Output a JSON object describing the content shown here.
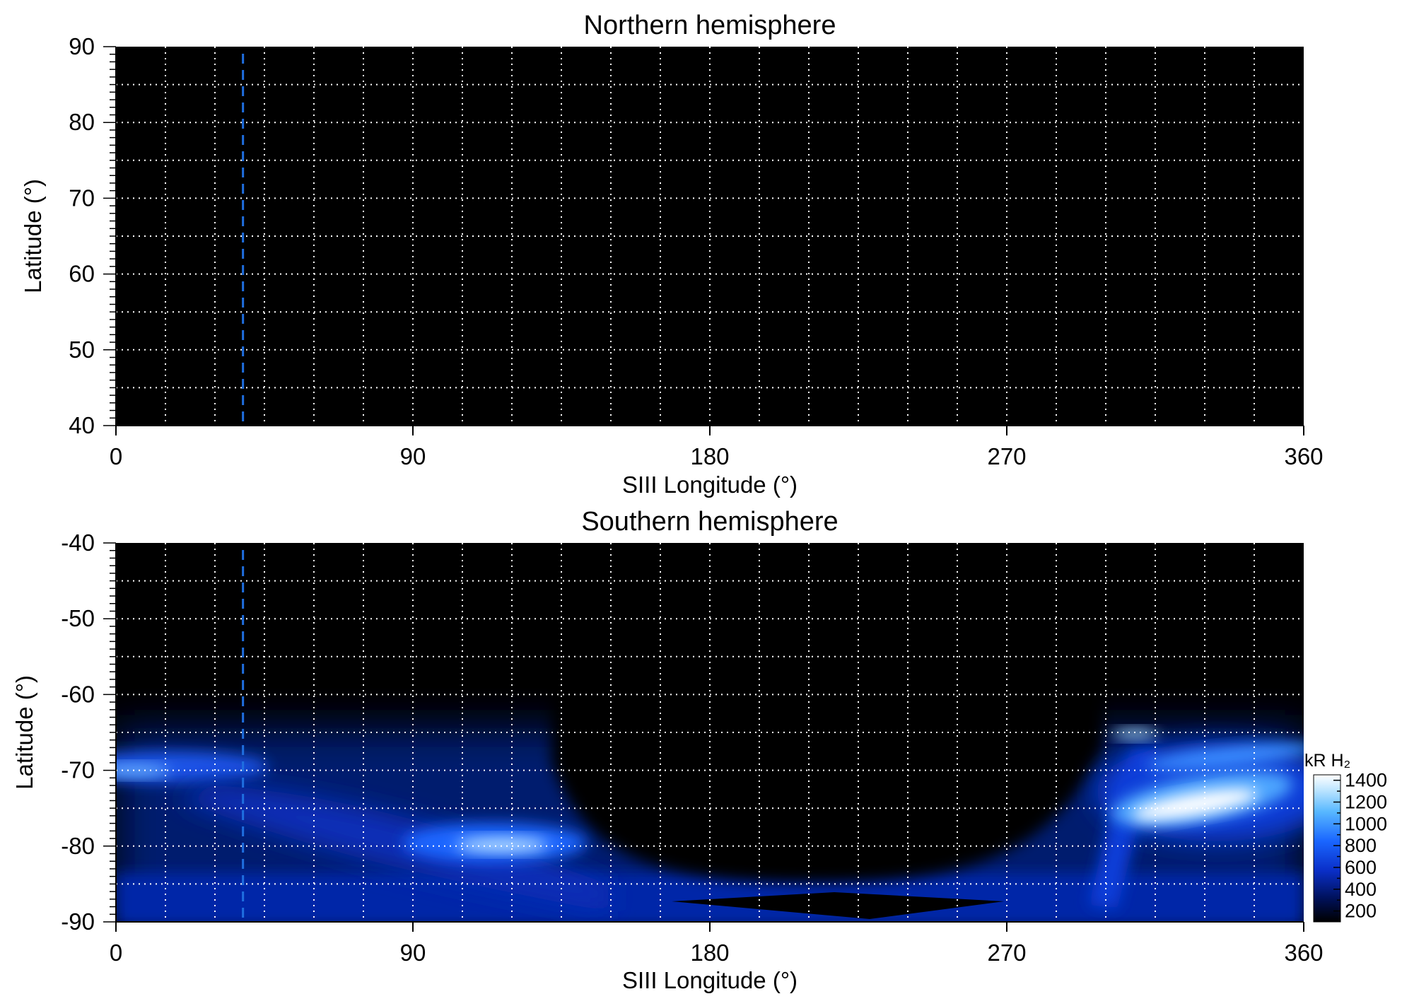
{
  "chart_data": [
    {
      "type": "heatmap",
      "title": "Northern hemisphere",
      "xlabel": "SIII Longitude (°)",
      "ylabel": "Latitude (°)",
      "xlim": [
        0,
        360
      ],
      "ylim": [
        40,
        90
      ],
      "xticks": [
        "0",
        "90",
        "180",
        "270",
        "360"
      ],
      "yticks": [
        "90",
        "80",
        "70",
        "60",
        "50",
        "40"
      ],
      "grid": true,
      "grid_lon_step": 15,
      "grid_lat_step": 5,
      "reference_longitude": 38.5,
      "emission": "none visible (all black)"
    },
    {
      "type": "heatmap",
      "title": "Southern hemisphere",
      "xlabel": "SIII Longitude (°)",
      "ylabel": "Latitude (°)",
      "xlim": [
        0,
        360
      ],
      "ylim": [
        -90,
        -40
      ],
      "xticks": [
        "0",
        "90",
        "180",
        "270",
        "360"
      ],
      "yticks": [
        "-40",
        "-50",
        "-60",
        "-70",
        "-80",
        "-90"
      ],
      "grid": true,
      "grid_lon_step": 15,
      "grid_lat_step": 5,
      "reference_longitude": 38.5,
      "colorbar": {
        "label": "kR H₂",
        "ticks": [
          "1400",
          "1200",
          "1000",
          "800",
          "600",
          "400",
          "200"
        ],
        "range": [
          100,
          1450
        ],
        "colors": [
          "#000000",
          "#00115a",
          "#0a2fc8",
          "#1a66ff",
          "#58b8ff",
          "#bfe6ff",
          "#ffffff"
        ]
      },
      "features": [
        {
          "name": "auroral-band-lon0-60",
          "lon": [
            0,
            60
          ],
          "lat": [
            -72,
            -66
          ],
          "intensity_kR": 600
        },
        {
          "name": "bright-patch-lon110-135",
          "lon": [
            100,
            145
          ],
          "lat": [
            -82,
            -78
          ],
          "intensity_kR": 1100
        },
        {
          "name": "bright-oval-lon300-360",
          "lon": [
            305,
            345
          ],
          "lat": [
            -78,
            -72
          ],
          "intensity_kR": 1400
        },
        {
          "name": "spot-lon320",
          "lon": [
            305,
            325
          ],
          "lat": [
            -66,
            -64
          ],
          "intensity_kR": 900
        }
      ]
    }
  ]
}
